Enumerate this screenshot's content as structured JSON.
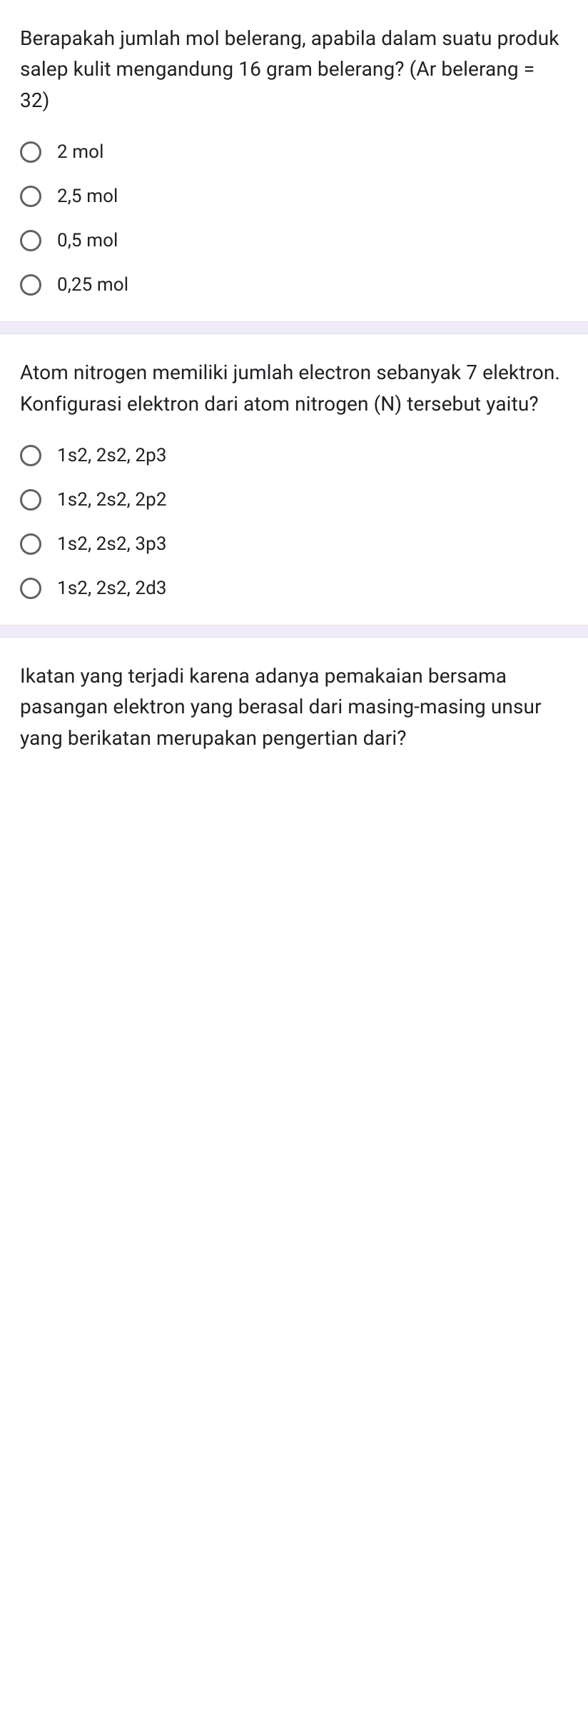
{
  "questions": [
    {
      "prompt": "Berapakah jumlah mol belerang, apabila dalam suatu produk salep kulit mengandung 16 gram belerang? (Ar belerang = 32)",
      "options": [
        "2 mol",
        "2,5 mol",
        "0,5 mol",
        "0,25 mol"
      ]
    },
    {
      "prompt": "Atom nitrogen memiliki jumlah electron sebanyak 7 elektron. Konfigurasi elektron dari atom nitrogen (N) tersebut yaitu?",
      "options": [
        "1s2, 2s2, 2p3",
        "1s2, 2s2, 2p2",
        "1s2, 2s2, 3p3",
        "1s2, 2s2, 2d3"
      ]
    },
    {
      "prompt": "Ikatan yang terjadi karena adanya pemakaian bersama pasangan elektron yang berasal dari masing-masing unsur yang berikatan merupakan pengertian dari?",
      "options": []
    }
  ]
}
